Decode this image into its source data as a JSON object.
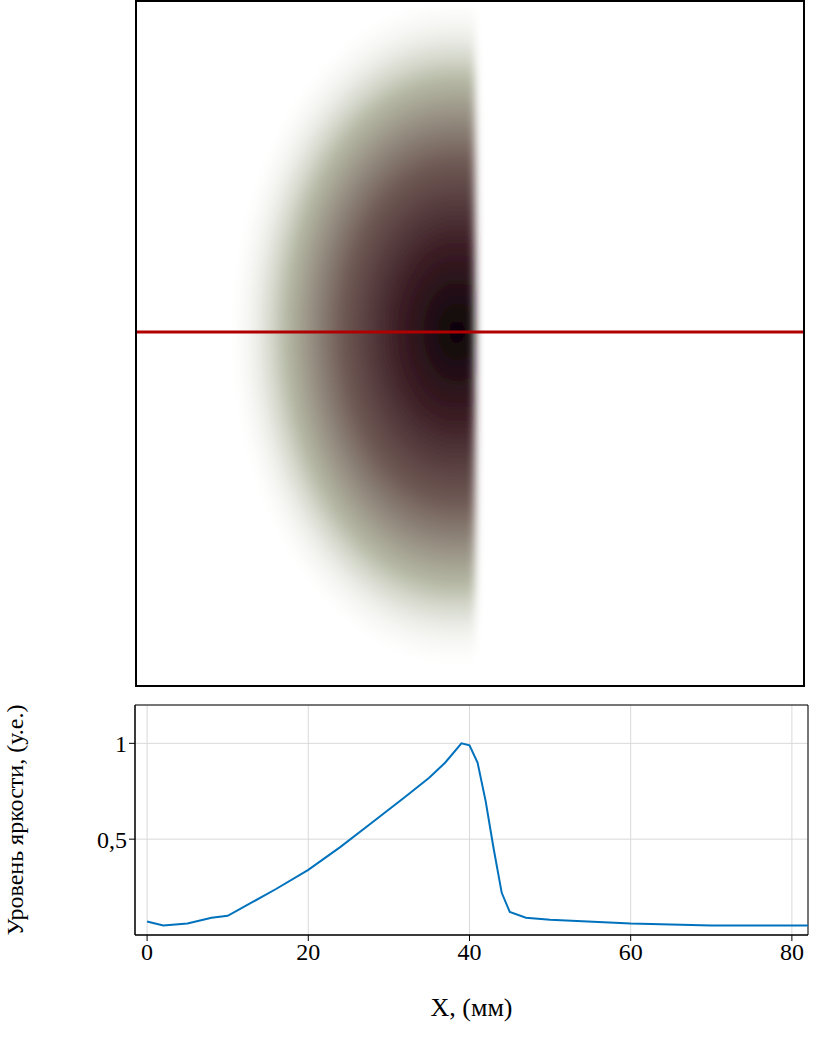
{
  "chart_data": {
    "type": "line",
    "x_label": "X, (мм)",
    "y_label": "Уровень яркости, (у.е.)",
    "x": [
      0,
      2,
      5,
      8,
      10,
      13,
      16,
      20,
      24,
      28,
      32,
      35,
      37,
      39,
      40,
      41,
      42,
      43,
      44,
      45,
      47,
      50,
      60,
      70,
      82
    ],
    "values": [
      0.07,
      0.05,
      0.06,
      0.09,
      0.1,
      0.17,
      0.24,
      0.34,
      0.46,
      0.59,
      0.72,
      0.82,
      0.9,
      1.0,
      0.99,
      0.9,
      0.7,
      0.45,
      0.22,
      0.12,
      0.09,
      0.08,
      0.06,
      0.05,
      0.05
    ],
    "color": "#0072bd",
    "xlim": [
      -1.5,
      82
    ],
    "ylim": [
      0,
      1.2
    ],
    "xticks": [
      0,
      20,
      40,
      60,
      80
    ],
    "yticks": [
      {
        "value": 0.5,
        "label": "0,5"
      },
      1
    ],
    "grid": true
  }
}
